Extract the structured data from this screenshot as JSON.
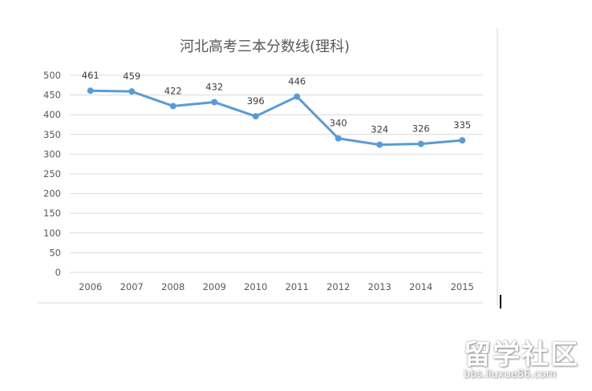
{
  "chart_data": {
    "type": "line",
    "title": "河北高考三本分数线(理科)",
    "categories": [
      "2006",
      "2007",
      "2008",
      "2009",
      "2010",
      "2011",
      "2012",
      "2013",
      "2014",
      "2015"
    ],
    "values": [
      461,
      459,
      422,
      432,
      396,
      446,
      340,
      324,
      326,
      335
    ],
    "ylim": [
      0,
      500
    ],
    "yticks": [
      0,
      50,
      100,
      150,
      200,
      250,
      300,
      350,
      400,
      450,
      500
    ],
    "grid": true,
    "xlabel": "",
    "ylabel": "",
    "line_color": "#5B9BD5"
  },
  "watermark": {
    "main": "留学社区",
    "url": "bbs.liuxue86.com"
  }
}
